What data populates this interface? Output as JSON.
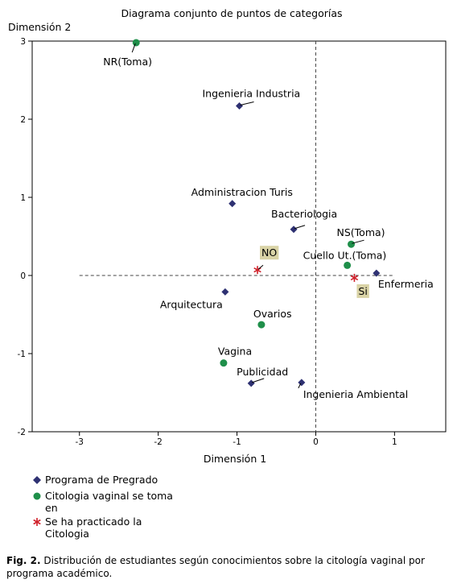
{
  "chart_data": {
    "type": "scatter",
    "title": "Diagrama conjunto de puntos de categorías",
    "xlabel": "Dimensión 1",
    "ylabel": "Dimensión 2",
    "xlim": [
      -3.6,
      1.65
    ],
    "ylim": [
      -2,
      3
    ],
    "xticks": [
      -3,
      -2,
      -1,
      0,
      1
    ],
    "yticks": [
      -2,
      -1,
      0,
      1,
      2,
      3
    ],
    "reference_lines": {
      "x": 0,
      "y": 0
    },
    "series": [
      {
        "name": "Programa de Pregrado",
        "marker": "diamond",
        "color": "#2e3172",
        "points": [
          {
            "label": "Ingenieria Industria",
            "x": -0.97,
            "y": 2.17
          },
          {
            "label": "Administracion Turis",
            "x": -1.06,
            "y": 0.92
          },
          {
            "label": "Bacteriologia",
            "x": -0.28,
            "y": 0.59
          },
          {
            "label": "Enfermeria",
            "x": 0.77,
            "y": 0.03
          },
          {
            "label": "Arquitectura",
            "x": -1.15,
            "y": -0.21
          },
          {
            "label": "Publicidad",
            "x": -0.82,
            "y": -1.38
          },
          {
            "label": "Ingenieria Ambiental",
            "x": -0.18,
            "y": -1.37
          }
        ]
      },
      {
        "name": "Citologia vaginal se toma en",
        "marker": "circle",
        "color": "#1f8f4a",
        "points": [
          {
            "label": "NR(Toma)",
            "x": -2.28,
            "y": 2.98
          },
          {
            "label": "NS(Toma)",
            "x": 0.45,
            "y": 0.4
          },
          {
            "label": "Cuello Ut.(Toma)",
            "x": 0.4,
            "y": 0.13
          },
          {
            "label": "Ovarios",
            "x": -0.69,
            "y": -0.63
          },
          {
            "label": "Vagina",
            "x": -1.17,
            "y": -1.12
          }
        ]
      },
      {
        "name": "Se ha practicado la Citologia",
        "marker": "asterisk",
        "color": "#d0202a",
        "points": [
          {
            "label": "NO",
            "x": -0.74,
            "y": 0.07
          },
          {
            "label": "Si",
            "x": 0.49,
            "y": -0.03
          }
        ]
      }
    ],
    "highlighted_labels": [
      "NO",
      "Si"
    ],
    "legend_position": "bottom-left"
  },
  "caption": {
    "prefix": "Fig. 2.",
    "text": " Distribución de estudiantes según conocimientos sobre la citología vaginal por programa académico."
  }
}
